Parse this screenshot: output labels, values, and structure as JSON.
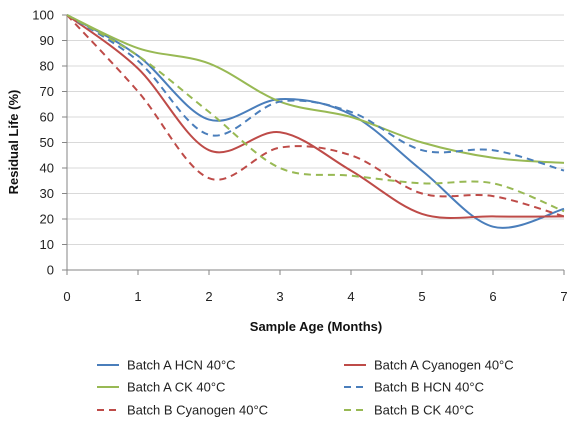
{
  "chart_data": {
    "type": "line",
    "title": "",
    "xlabel": "Sample Age (Months)",
    "ylabel": "Residual Life (%)",
    "xlim": [
      0,
      7
    ],
    "ylim": [
      0,
      100
    ],
    "x_ticks": [
      "0",
      "1",
      "2",
      "3",
      "4",
      "5",
      "6",
      "7"
    ],
    "y_ticks": [
      "0",
      "10",
      "20",
      "30",
      "40",
      "50",
      "60",
      "70",
      "80",
      "90",
      "100"
    ],
    "grid": "horizontal",
    "legend_position": "bottom",
    "series": [
      {
        "name": "Batch A HCN 40°C",
        "color": "#4a7ebb",
        "dash": "solid",
        "x": [
          0,
          1,
          2,
          3,
          4,
          5,
          6,
          7
        ],
        "y": [
          100,
          84,
          59,
          67,
          61,
          39,
          17,
          24
        ]
      },
      {
        "name": "Batch A Cyanogen 40°C",
        "color": "#be4b48",
        "dash": "solid",
        "x": [
          0,
          1,
          2,
          3,
          4,
          5,
          6,
          7
        ],
        "y": [
          100,
          79,
          47,
          54,
          39,
          22,
          21,
          21
        ]
      },
      {
        "name": "Batch A CK 40°C",
        "color": "#98b954",
        "dash": "solid",
        "x": [
          0,
          1,
          2,
          3,
          4,
          5,
          6,
          7
        ],
        "y": [
          100,
          87,
          81,
          66,
          60,
          50,
          44,
          42
        ]
      },
      {
        "name": "Batch B HCN 40°C",
        "color": "#4a7ebb",
        "dash": "dashed",
        "x": [
          0,
          1,
          2,
          3,
          4,
          5,
          6,
          7
        ],
        "y": [
          100,
          82,
          53,
          66,
          62,
          47,
          47,
          39
        ]
      },
      {
        "name": "Batch B Cyanogen 40°C",
        "color": "#be4b48",
        "dash": "dashed",
        "x": [
          0,
          1,
          2,
          3,
          4,
          5,
          6,
          7
        ],
        "y": [
          100,
          70,
          36,
          48,
          45,
          30,
          29,
          21
        ]
      },
      {
        "name": "Batch B CK 40°C",
        "color": "#98b954",
        "dash": "dashed",
        "x": [
          0,
          1,
          2,
          3,
          4,
          5,
          6,
          7
        ],
        "y": [
          100,
          84,
          62,
          40,
          37,
          34,
          34,
          23
        ]
      }
    ]
  }
}
